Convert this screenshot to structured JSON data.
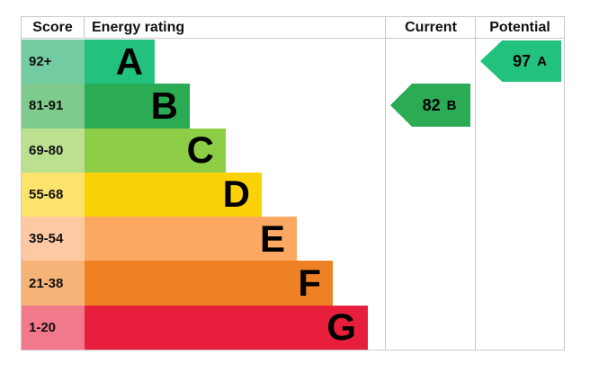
{
  "header": {
    "score": "Score",
    "energy_rating": "Energy rating",
    "current": "Current",
    "potential": "Potential"
  },
  "bands": [
    {
      "letter": "A",
      "score_range": "92+",
      "color": "#22c17d",
      "score_color": "#73cba2"
    },
    {
      "letter": "B",
      "score_range": "81-91",
      "color": "#2bab53",
      "score_color": "#7fcb8d"
    },
    {
      "letter": "C",
      "score_range": "69-80",
      "color": "#8dce46",
      "score_color": "#bbe090"
    },
    {
      "letter": "D",
      "score_range": "55-68",
      "color": "#fad207",
      "score_color": "#fbe36e"
    },
    {
      "letter": "E",
      "score_range": "39-54",
      "color": "#fba863",
      "score_color": "#fdc9a2"
    },
    {
      "letter": "F",
      "score_range": "21-38",
      "color": "#ee8123",
      "score_color": "#f5b377"
    },
    {
      "letter": "G",
      "score_range": "1-20",
      "color": "#e81f3c",
      "score_color": "#f1798b"
    }
  ],
  "current": {
    "value": "82",
    "letter": "B",
    "color": "#2bab53"
  },
  "potential": {
    "value": "97",
    "letter": "A",
    "color": "#22c17d"
  },
  "chart_data": {
    "type": "bar",
    "title": "EPC energy rating chart",
    "columns": [
      "Score",
      "Energy rating",
      "Current",
      "Potential"
    ],
    "categories": [
      "A",
      "B",
      "C",
      "D",
      "E",
      "F",
      "G"
    ],
    "score_ranges": [
      "92+",
      "81-91",
      "69-80",
      "55-68",
      "39-54",
      "21-38",
      "1-20"
    ],
    "band_colors": [
      "#22c17d",
      "#2bab53",
      "#8dce46",
      "#fad207",
      "#fba863",
      "#ee8123",
      "#e81f3c"
    ],
    "bar_relative_lengths": [
      1,
      1.5,
      2,
      2.5,
      3,
      3.5,
      4
    ],
    "current": {
      "score": 82,
      "rating": "B"
    },
    "potential": {
      "score": 97,
      "rating": "A"
    },
    "legend_position": "none",
    "grid": false
  }
}
